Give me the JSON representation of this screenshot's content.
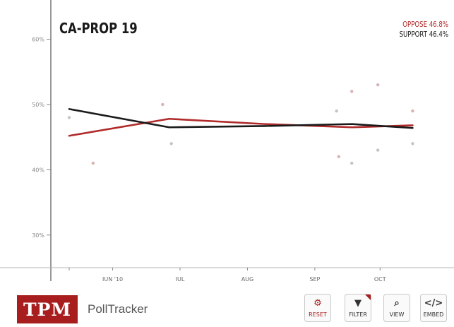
{
  "chart_data": {
    "type": "line",
    "title": "CA-PROP 19",
    "ylim": [
      25,
      66
    ],
    "y_ticks": [
      30,
      40,
      50,
      60
    ],
    "y_tick_labels": [
      "30%",
      "40%",
      "50%",
      "60%"
    ],
    "x_ticks": [
      20,
      51,
      82,
      113,
      143
    ],
    "x_tick_labels": [
      "JUN '10",
      "JUL",
      "AUG",
      "SEP",
      "OCT"
    ],
    "xlim": [
      0,
      165
    ],
    "series": [
      {
        "name": "OPPOSE",
        "current": "46.8%",
        "color": "#b02a2a",
        "x": [
          0,
          46,
          90,
          130,
          158
        ],
        "values": [
          45.2,
          47.8,
          47.0,
          46.5,
          46.8
        ]
      },
      {
        "name": "SUPPORT",
        "current": "46.4%",
        "color": "#1a1a1a",
        "x": [
          0,
          46,
          90,
          130,
          158
        ],
        "values": [
          49.3,
          46.5,
          46.7,
          47.0,
          46.4
        ]
      }
    ],
    "points": [
      {
        "x": 0,
        "y": 48,
        "series": "SUPPORT"
      },
      {
        "x": 11,
        "y": 41,
        "series": "OPPOSE"
      },
      {
        "x": 43,
        "y": 50,
        "series": "OPPOSE"
      },
      {
        "x": 47,
        "y": 44,
        "series": "SUPPORT"
      },
      {
        "x": 123,
        "y": 49,
        "series": "SUPPORT"
      },
      {
        "x": 124,
        "y": 42,
        "series": "OPPOSE"
      },
      {
        "x": 130,
        "y": 52,
        "series": "OPPOSE"
      },
      {
        "x": 130,
        "y": 41,
        "series": "SUPPORT"
      },
      {
        "x": 142,
        "y": 53,
        "series": "OPPOSE"
      },
      {
        "x": 142,
        "y": 43,
        "series": "SUPPORT"
      },
      {
        "x": 158,
        "y": 49,
        "series": "OPPOSE"
      },
      {
        "x": 158,
        "y": 44,
        "series": "SUPPORT"
      }
    ]
  },
  "legend": {
    "oppose_label": "OPPOSE",
    "oppose_value": "46.8%",
    "support_label": "SUPPORT",
    "support_value": "46.4%"
  },
  "footer": {
    "logo_text": "TPM",
    "brand": "PollTracker",
    "buttons": [
      {
        "label": "RESET",
        "icon": "gear-icon"
      },
      {
        "label": "FILTER",
        "icon": "filter-icon"
      },
      {
        "label": "VIEW",
        "icon": "magnifier-icon"
      },
      {
        "label": "EMBED",
        "icon": "code-icon"
      }
    ]
  }
}
